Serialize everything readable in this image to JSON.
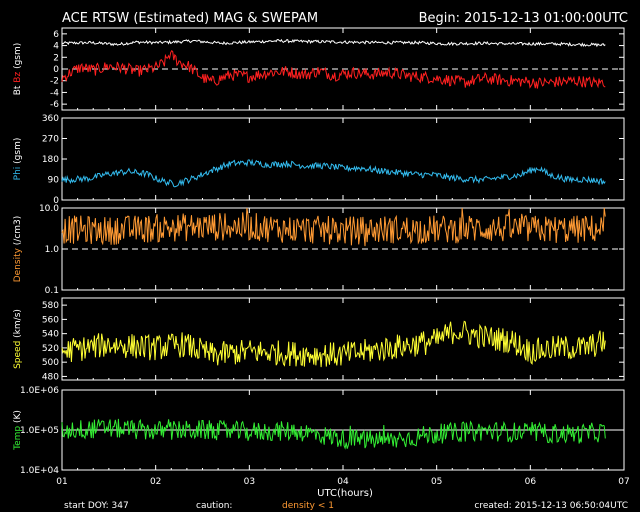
{
  "header": {
    "title": "ACE RTSW (Estimated) MAG & SWEPAM",
    "begin": "Begin: 2015-12-13 01:00:00UTC"
  },
  "footer": {
    "start_doy": "start DOY: 347",
    "caution": "caution:",
    "density_note": "density < 1",
    "created": "created: 2015-12-13 06:50:04UTC",
    "xlabel": "UTC(hours)"
  },
  "colors": {
    "bt": "#ffffff",
    "bz": "#ff2020",
    "phi": "#33bbee",
    "density": "#ff9a33",
    "speed": "#ffff33",
    "temp": "#33ee33",
    "axis": "#ffffff"
  },
  "chart_data": {
    "type": "line",
    "x_ticks": [
      "01",
      "02",
      "03",
      "04",
      "05",
      "06",
      "07"
    ],
    "xlim": [
      1,
      7
    ],
    "panels": [
      {
        "id": "mag",
        "ylabel_parts": [
          {
            "text": "Bt",
            "color": "#ffffff"
          },
          {
            "text": "Bz",
            "color": "#ff2020"
          },
          {
            "text": "(gsm)",
            "color": "#ffffff"
          }
        ],
        "ylim": [
          -7,
          7
        ],
        "scale": "linear",
        "ticks": [
          {
            "v": 6,
            "label": "6"
          },
          {
            "v": 4,
            "label": "4"
          },
          {
            "v": 2,
            "label": "2"
          },
          {
            "v": 0,
            "label": "0"
          },
          {
            "v": -2,
            "label": "-2"
          },
          {
            "v": -4,
            "label": "-4"
          },
          {
            "v": -6,
            "label": "-6"
          }
        ],
        "ref_line": {
          "v": 0,
          "style": "dashed"
        },
        "series": [
          {
            "name": "Bt",
            "color": "#ffffff",
            "anchors": [
              [
                1.0,
                4.4
              ],
              [
                1.3,
                4.5
              ],
              [
                1.6,
                4.2
              ],
              [
                1.8,
                4.6
              ],
              [
                2.0,
                4.5
              ],
              [
                2.2,
                4.6
              ],
              [
                2.4,
                4.8
              ],
              [
                2.7,
                4.4
              ],
              [
                3.0,
                4.6
              ],
              [
                3.3,
                4.8
              ],
              [
                3.6,
                4.7
              ],
              [
                4.0,
                4.6
              ],
              [
                4.4,
                4.5
              ],
              [
                4.8,
                4.5
              ],
              [
                5.1,
                4.3
              ],
              [
                5.5,
                4.4
              ],
              [
                5.8,
                4.3
              ],
              [
                6.2,
                4.3
              ],
              [
                6.5,
                4.2
              ],
              [
                6.8,
                4.1
              ]
            ],
            "jitter": 0.25
          },
          {
            "name": "Bz",
            "color": "#ff2020",
            "anchors": [
              [
                1.0,
                -1.6
              ],
              [
                1.1,
                -0.5
              ],
              [
                1.2,
                0.3
              ],
              [
                1.35,
                -0.2
              ],
              [
                1.5,
                0.5
              ],
              [
                1.65,
                0.2
              ],
              [
                1.8,
                -0.4
              ],
              [
                2.0,
                0.2
              ],
              [
                2.1,
                1.2
              ],
              [
                2.15,
                2.6
              ],
              [
                2.25,
                1.2
              ],
              [
                2.35,
                0.5
              ],
              [
                2.5,
                -1.5
              ],
              [
                2.6,
                -2.2
              ],
              [
                2.8,
                -1.0
              ],
              [
                3.0,
                -1.3
              ],
              [
                3.2,
                -0.6
              ],
              [
                3.4,
                -0.4
              ],
              [
                3.6,
                -1.0
              ],
              [
                3.75,
                -0.3
              ],
              [
                3.9,
                -1.1
              ],
              [
                4.1,
                -0.6
              ],
              [
                4.3,
                -0.9
              ],
              [
                4.5,
                -0.6
              ],
              [
                4.7,
                -1.2
              ],
              [
                4.9,
                -1.4
              ],
              [
                5.1,
                -1.8
              ],
              [
                5.3,
                -2.3
              ],
              [
                5.5,
                -1.6
              ],
              [
                5.7,
                -1.9
              ],
              [
                5.9,
                -2.1
              ],
              [
                6.1,
                -2.4
              ],
              [
                6.3,
                -2.2
              ],
              [
                6.5,
                -2.0
              ],
              [
                6.7,
                -2.4
              ],
              [
                6.8,
                -2.2
              ]
            ],
            "jitter": 1.0
          }
        ]
      },
      {
        "id": "phi",
        "ylabel_parts": [
          {
            "text": "Phi",
            "color": "#33bbee"
          },
          {
            "text": "(gsm)",
            "color": "#ffffff"
          }
        ],
        "ylim": [
          0,
          360
        ],
        "scale": "linear",
        "ticks": [
          {
            "v": 360,
            "label": "360"
          },
          {
            "v": 270,
            "label": "270"
          },
          {
            "v": 180,
            "label": "180"
          },
          {
            "v": 90,
            "label": "90"
          },
          {
            "v": 0,
            "label": "0"
          }
        ],
        "series": [
          {
            "name": "Phi",
            "color": "#33bbee",
            "anchors": [
              [
                1.0,
                88
              ],
              [
                1.3,
                95
              ],
              [
                1.5,
                115
              ],
              [
                1.7,
                125
              ],
              [
                1.9,
                115
              ],
              [
                2.0,
                95
              ],
              [
                2.1,
                80
              ],
              [
                2.2,
                70
              ],
              [
                2.4,
                95
              ],
              [
                2.6,
                130
              ],
              [
                2.8,
                160
              ],
              [
                3.0,
                165
              ],
              [
                3.2,
                155
              ],
              [
                3.4,
                160
              ],
              [
                3.6,
                150
              ],
              [
                3.8,
                150
              ],
              [
                4.0,
                140
              ],
              [
                4.2,
                140
              ],
              [
                4.4,
                128
              ],
              [
                4.6,
                120
              ],
              [
                4.8,
                112
              ],
              [
                5.0,
                110
              ],
              [
                5.1,
                100
              ],
              [
                5.3,
                92
              ],
              [
                5.5,
                88
              ],
              [
                5.7,
                100
              ],
              [
                5.9,
                110
              ],
              [
                6.0,
                130
              ],
              [
                6.1,
                140
              ],
              [
                6.2,
                110
              ],
              [
                6.4,
                90
              ],
              [
                6.6,
                90
              ],
              [
                6.8,
                80
              ]
            ],
            "jitter": 14
          }
        ]
      },
      {
        "id": "density",
        "ylabel_parts": [
          {
            "text": "Density",
            "color": "#ff9a33"
          },
          {
            "text": "(/cm3)",
            "color": "#ffffff"
          }
        ],
        "ylim": [
          0.1,
          10
        ],
        "scale": "log",
        "ticks": [
          {
            "v": 10,
            "label": "10.0"
          },
          {
            "v": 1,
            "label": "1.0"
          },
          {
            "v": 0.1,
            "label": "0.1"
          }
        ],
        "ref_line": {
          "v": 1,
          "style": "dashed"
        },
        "series": [
          {
            "name": "Density",
            "color": "#ff9a33",
            "anchors": [
              [
                1.0,
                3.0
              ],
              [
                1.5,
                2.8
              ],
              [
                2.0,
                3.2
              ],
              [
                2.5,
                3.5
              ],
              [
                3.0,
                3.5
              ],
              [
                3.5,
                3.0
              ],
              [
                4.0,
                2.8
              ],
              [
                4.5,
                3.0
              ],
              [
                5.0,
                3.0
              ],
              [
                5.5,
                3.2
              ],
              [
                6.0,
                3.0
              ],
              [
                6.5,
                3.0
              ],
              [
                6.8,
                3.2
              ]
            ],
            "jitter": 0.35,
            "log": true
          }
        ]
      },
      {
        "id": "speed",
        "ylabel_parts": [
          {
            "text": "Speed",
            "color": "#ffff33"
          },
          {
            "text": "(km/s)",
            "color": "#ffffff"
          }
        ],
        "ylim": [
          475,
          590
        ],
        "scale": "linear",
        "ticks": [
          {
            "v": 580,
            "label": "580"
          },
          {
            "v": 560,
            "label": "560"
          },
          {
            "v": 540,
            "label": "540"
          },
          {
            "v": 520,
            "label": "520"
          },
          {
            "v": 500,
            "label": "500"
          },
          {
            "v": 480,
            "label": "480"
          }
        ],
        "series": [
          {
            "name": "Speed",
            "color": "#ffff33",
            "anchors": [
              [
                1.0,
                515
              ],
              [
                1.5,
                525
              ],
              [
                2.0,
                520
              ],
              [
                2.3,
                525
              ],
              [
                2.6,
                510
              ],
              [
                3.0,
                515
              ],
              [
                3.5,
                512
              ],
              [
                4.0,
                510
              ],
              [
                4.5,
                520
              ],
              [
                5.0,
                530
              ],
              [
                5.2,
                545
              ],
              [
                5.5,
                535
              ],
              [
                5.8,
                530
              ],
              [
                6.0,
                515
              ],
              [
                6.3,
                520
              ],
              [
                6.6,
                520
              ],
              [
                6.8,
                530
              ]
            ],
            "jitter": 18
          }
        ]
      },
      {
        "id": "temp",
        "ylabel_parts": [
          {
            "text": "Temp",
            "color": "#33ee33"
          },
          {
            "text": "(K)",
            "color": "#ffffff"
          }
        ],
        "ylim": [
          10000,
          1000000
        ],
        "scale": "log",
        "ticks": [
          {
            "v": 1000000,
            "label": "1.0E+06"
          },
          {
            "v": 100000,
            "label": "1.0E+05"
          },
          {
            "v": 10000,
            "label": "1.0E+04"
          }
        ],
        "ref_line": {
          "v": 100000,
          "style": "solid"
        },
        "series": [
          {
            "name": "Temp",
            "color": "#33ee33",
            "anchors": [
              [
                1.0,
                100000
              ],
              [
                1.5,
                110000
              ],
              [
                2.0,
                95000
              ],
              [
                2.5,
                100000
              ],
              [
                3.0,
                90000
              ],
              [
                3.5,
                95000
              ],
              [
                4.0,
                60000
              ],
              [
                4.5,
                55000
              ],
              [
                5.0,
                80000
              ],
              [
                5.5,
                95000
              ],
              [
                6.0,
                85000
              ],
              [
                6.5,
                80000
              ],
              [
                6.8,
                90000
              ]
            ],
            "jitter": 0.25,
            "log": true
          }
        ]
      }
    ]
  }
}
